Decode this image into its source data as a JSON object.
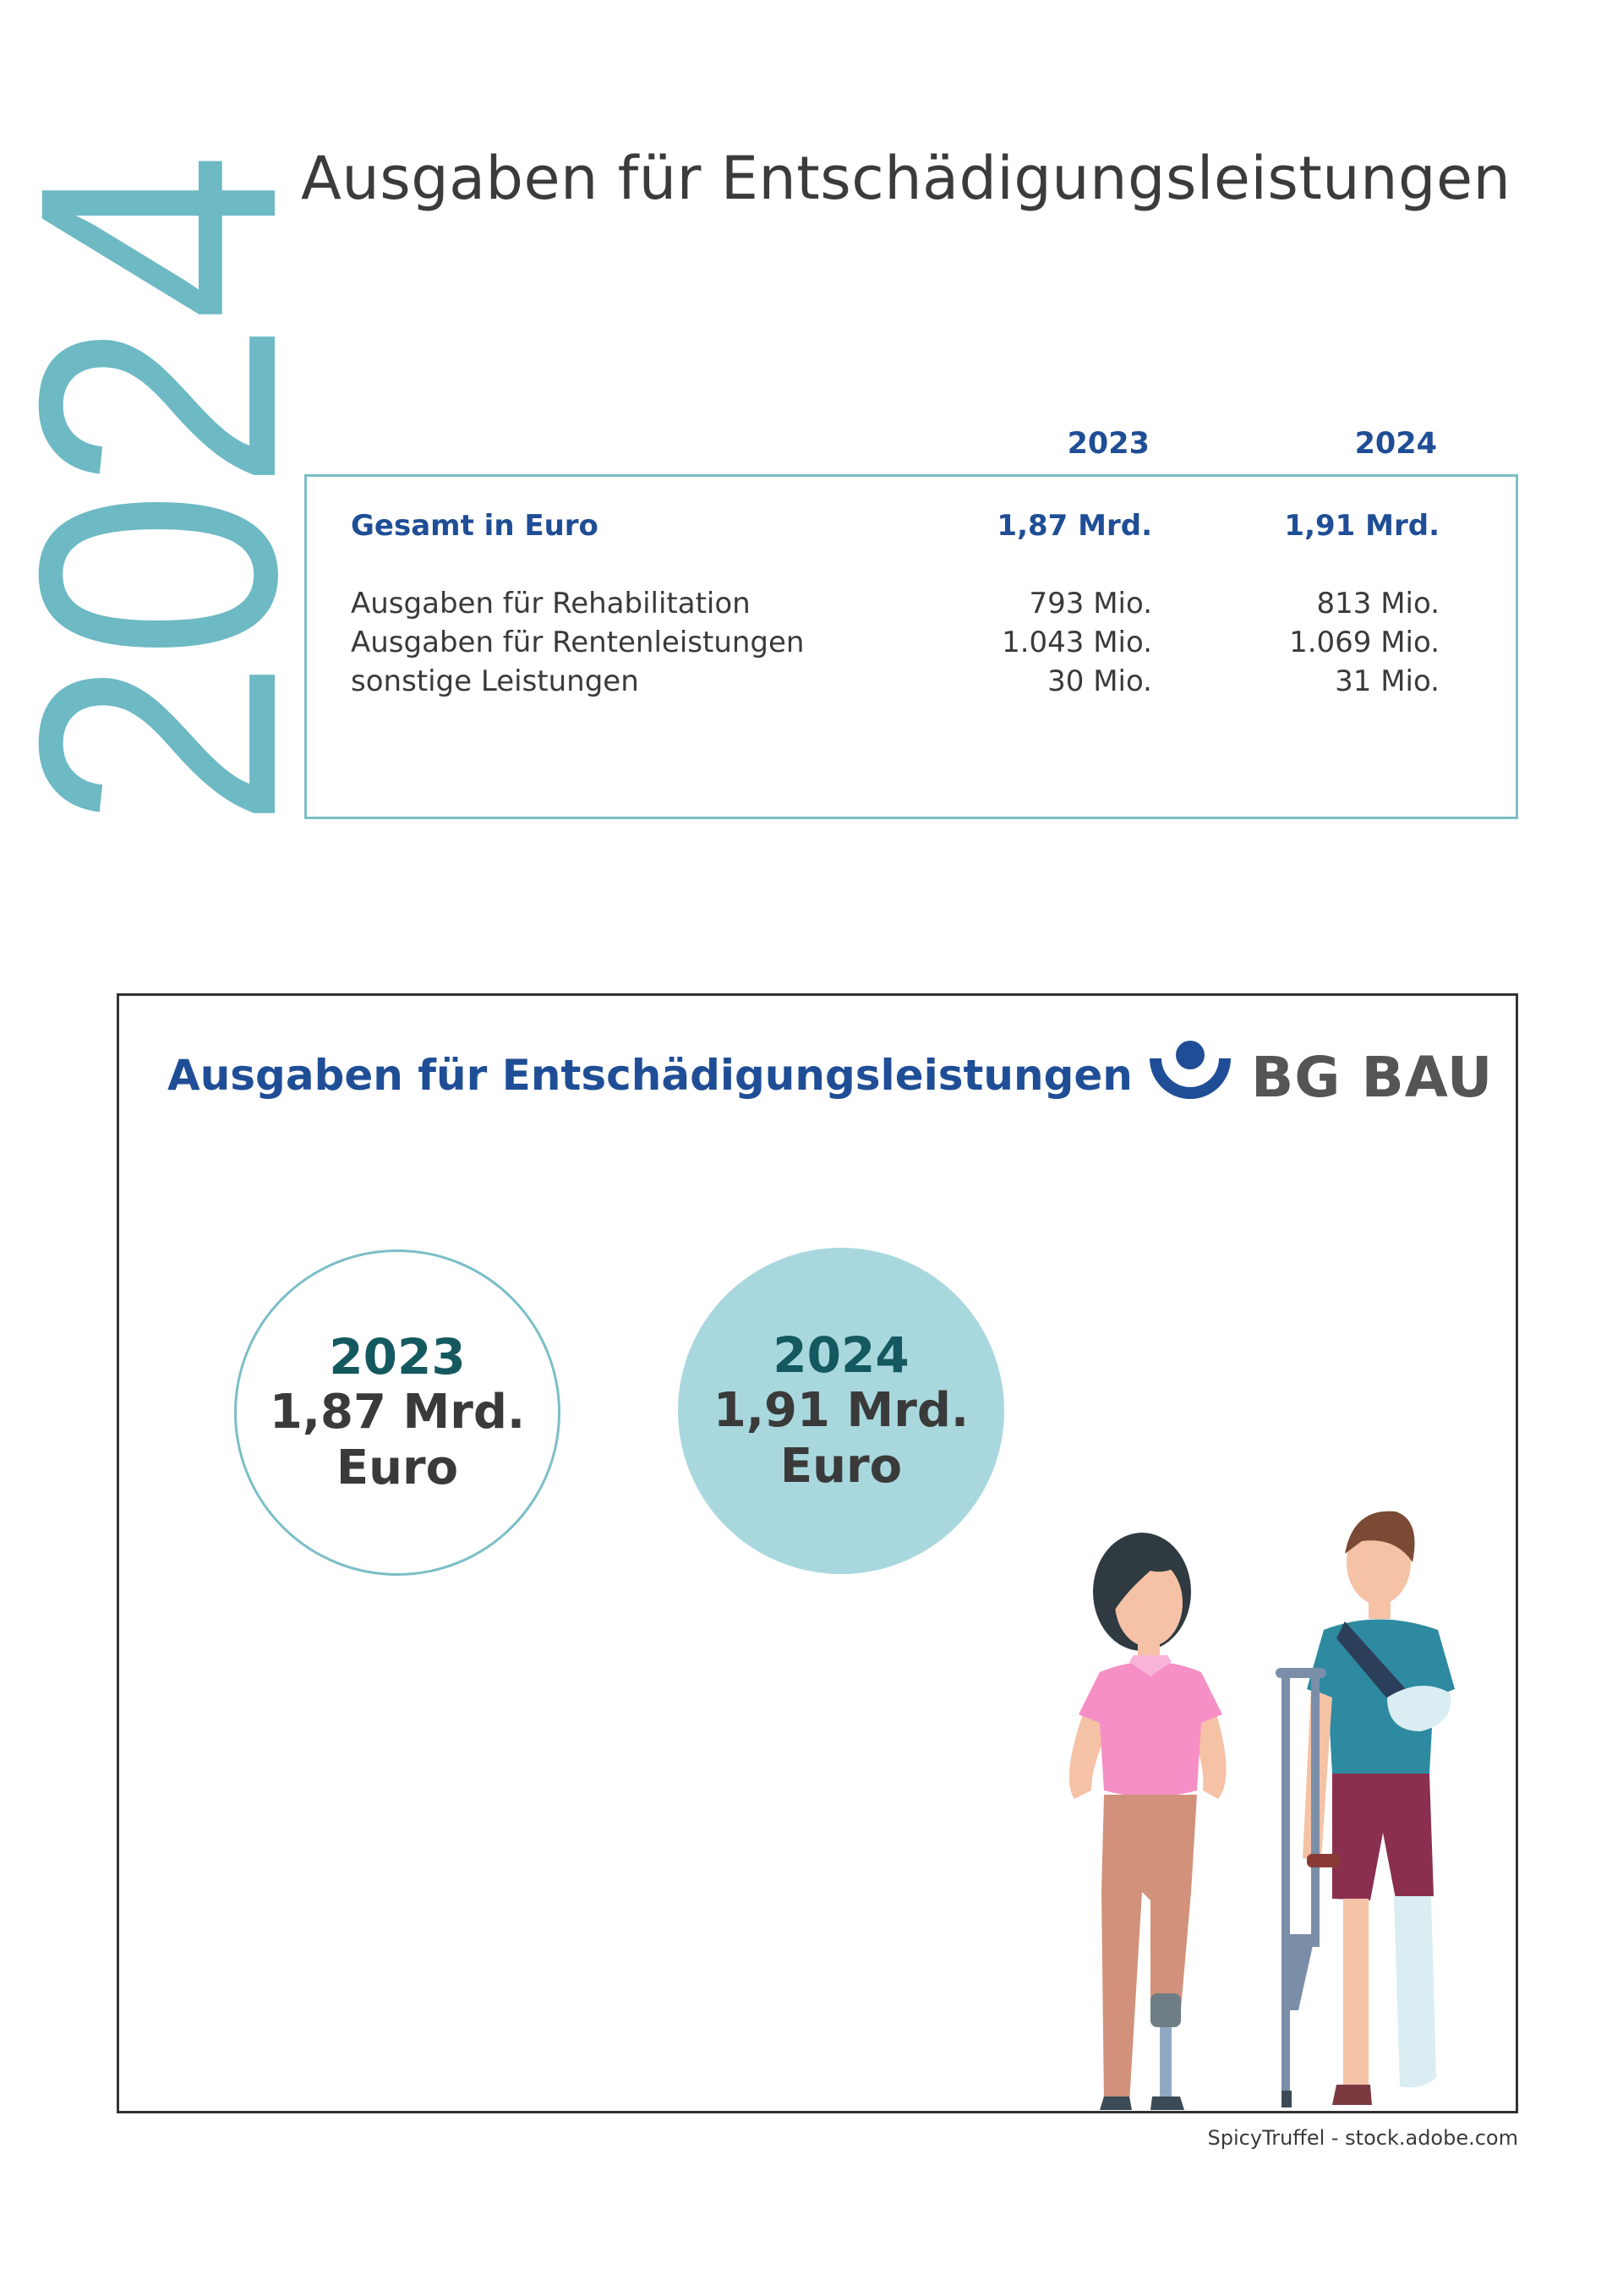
{
  "year_vertical": "2024",
  "page_title": "Ausgaben für Entschädigungsleistungen",
  "table": {
    "col_2023": "2023",
    "col_2024": "2024",
    "rows": [
      {
        "label": "Gesamt in Euro",
        "v2023": "1,87 Mrd.",
        "v2024": "1,91 Mrd."
      },
      {
        "label": "Ausgaben für Rehabilitation",
        "v2023": "793 Mio.",
        "v2024": "813 Mio."
      },
      {
        "label": "Ausgaben für Rentenleistungen",
        "v2023": "1.043 Mio.",
        "v2024": "1.069 Mio."
      },
      {
        "label": "sonstige Leistungen",
        "v2023": "30 Mio.",
        "v2024": "31 Mio."
      }
    ]
  },
  "infographic": {
    "title": "Ausgaben für Entschädigungsleistungen",
    "logo_text": "BG BAU",
    "circles": [
      {
        "year": "2023",
        "amount": "1,87 Mrd.",
        "unit": "Euro"
      },
      {
        "year": "2024",
        "amount": "1,91 Mrd.",
        "unit": "Euro"
      }
    ]
  },
  "credit": "SpicyTruffel - stock.adobe.com",
  "colors": {
    "accent_teal": "#6db9c4",
    "blue": "#1f4e96",
    "dark_teal": "#14595f",
    "circle_fill": "#a8d8de"
  }
}
